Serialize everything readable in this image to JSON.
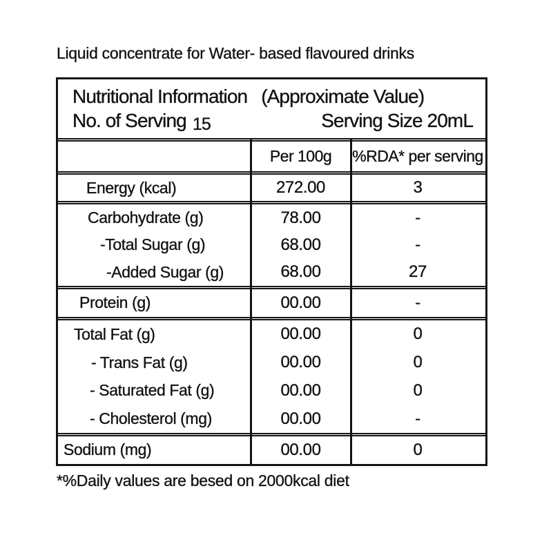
{
  "colors": {
    "ink": "#131313",
    "background": "#ffffff"
  },
  "page_title": "Liquid concentrate for Water- based flavoured drinks",
  "footnote": "*%Daily values are besed on 2000kcal diet",
  "table": {
    "header": {
      "title": "Nutritional Information",
      "approx_note": "(Approximate Value)",
      "servings_label": "No. of Serving",
      "servings_value": "15",
      "serving_size_label": "Serving Size 20mL"
    },
    "columns": {
      "per_100g": "Per 100g",
      "rda": "%RDA* per serving"
    },
    "sections": [
      {
        "name": "energy",
        "rows": [
          {
            "label": "Energy (kcal)",
            "per100g": "272.00",
            "rda": "3"
          }
        ]
      },
      {
        "name": "carbohydrate",
        "rows": [
          {
            "label": "Carbohydrate (g)",
            "per100g": "78.00",
            "rda": "-"
          },
          {
            "label": "-Total Sugar (g)",
            "per100g": "68.00",
            "rda": "-"
          },
          {
            "label": "-Added Sugar (g)",
            "per100g": "68.00",
            "rda": "27"
          }
        ]
      },
      {
        "name": "protein",
        "rows": [
          {
            "label": "Protein (g)",
            "per100g": "00.00",
            "rda": "-"
          }
        ]
      },
      {
        "name": "fat",
        "rows": [
          {
            "label": "Total Fat (g)",
            "per100g": "00.00",
            "rda": "0"
          },
          {
            "label": "- Trans Fat (g)",
            "per100g": "00.00",
            "rda": "0"
          },
          {
            "label": "- Saturated Fat (g)",
            "per100g": "00.00",
            "rda": "0"
          },
          {
            "label": "- Cholesterol (mg)",
            "per100g": "00.00",
            "rda": "-"
          }
        ]
      },
      {
        "name": "sodium",
        "rows": [
          {
            "label": "Sodium (mg)",
            "per100g": "00.00",
            "rda": "0"
          }
        ]
      }
    ]
  }
}
